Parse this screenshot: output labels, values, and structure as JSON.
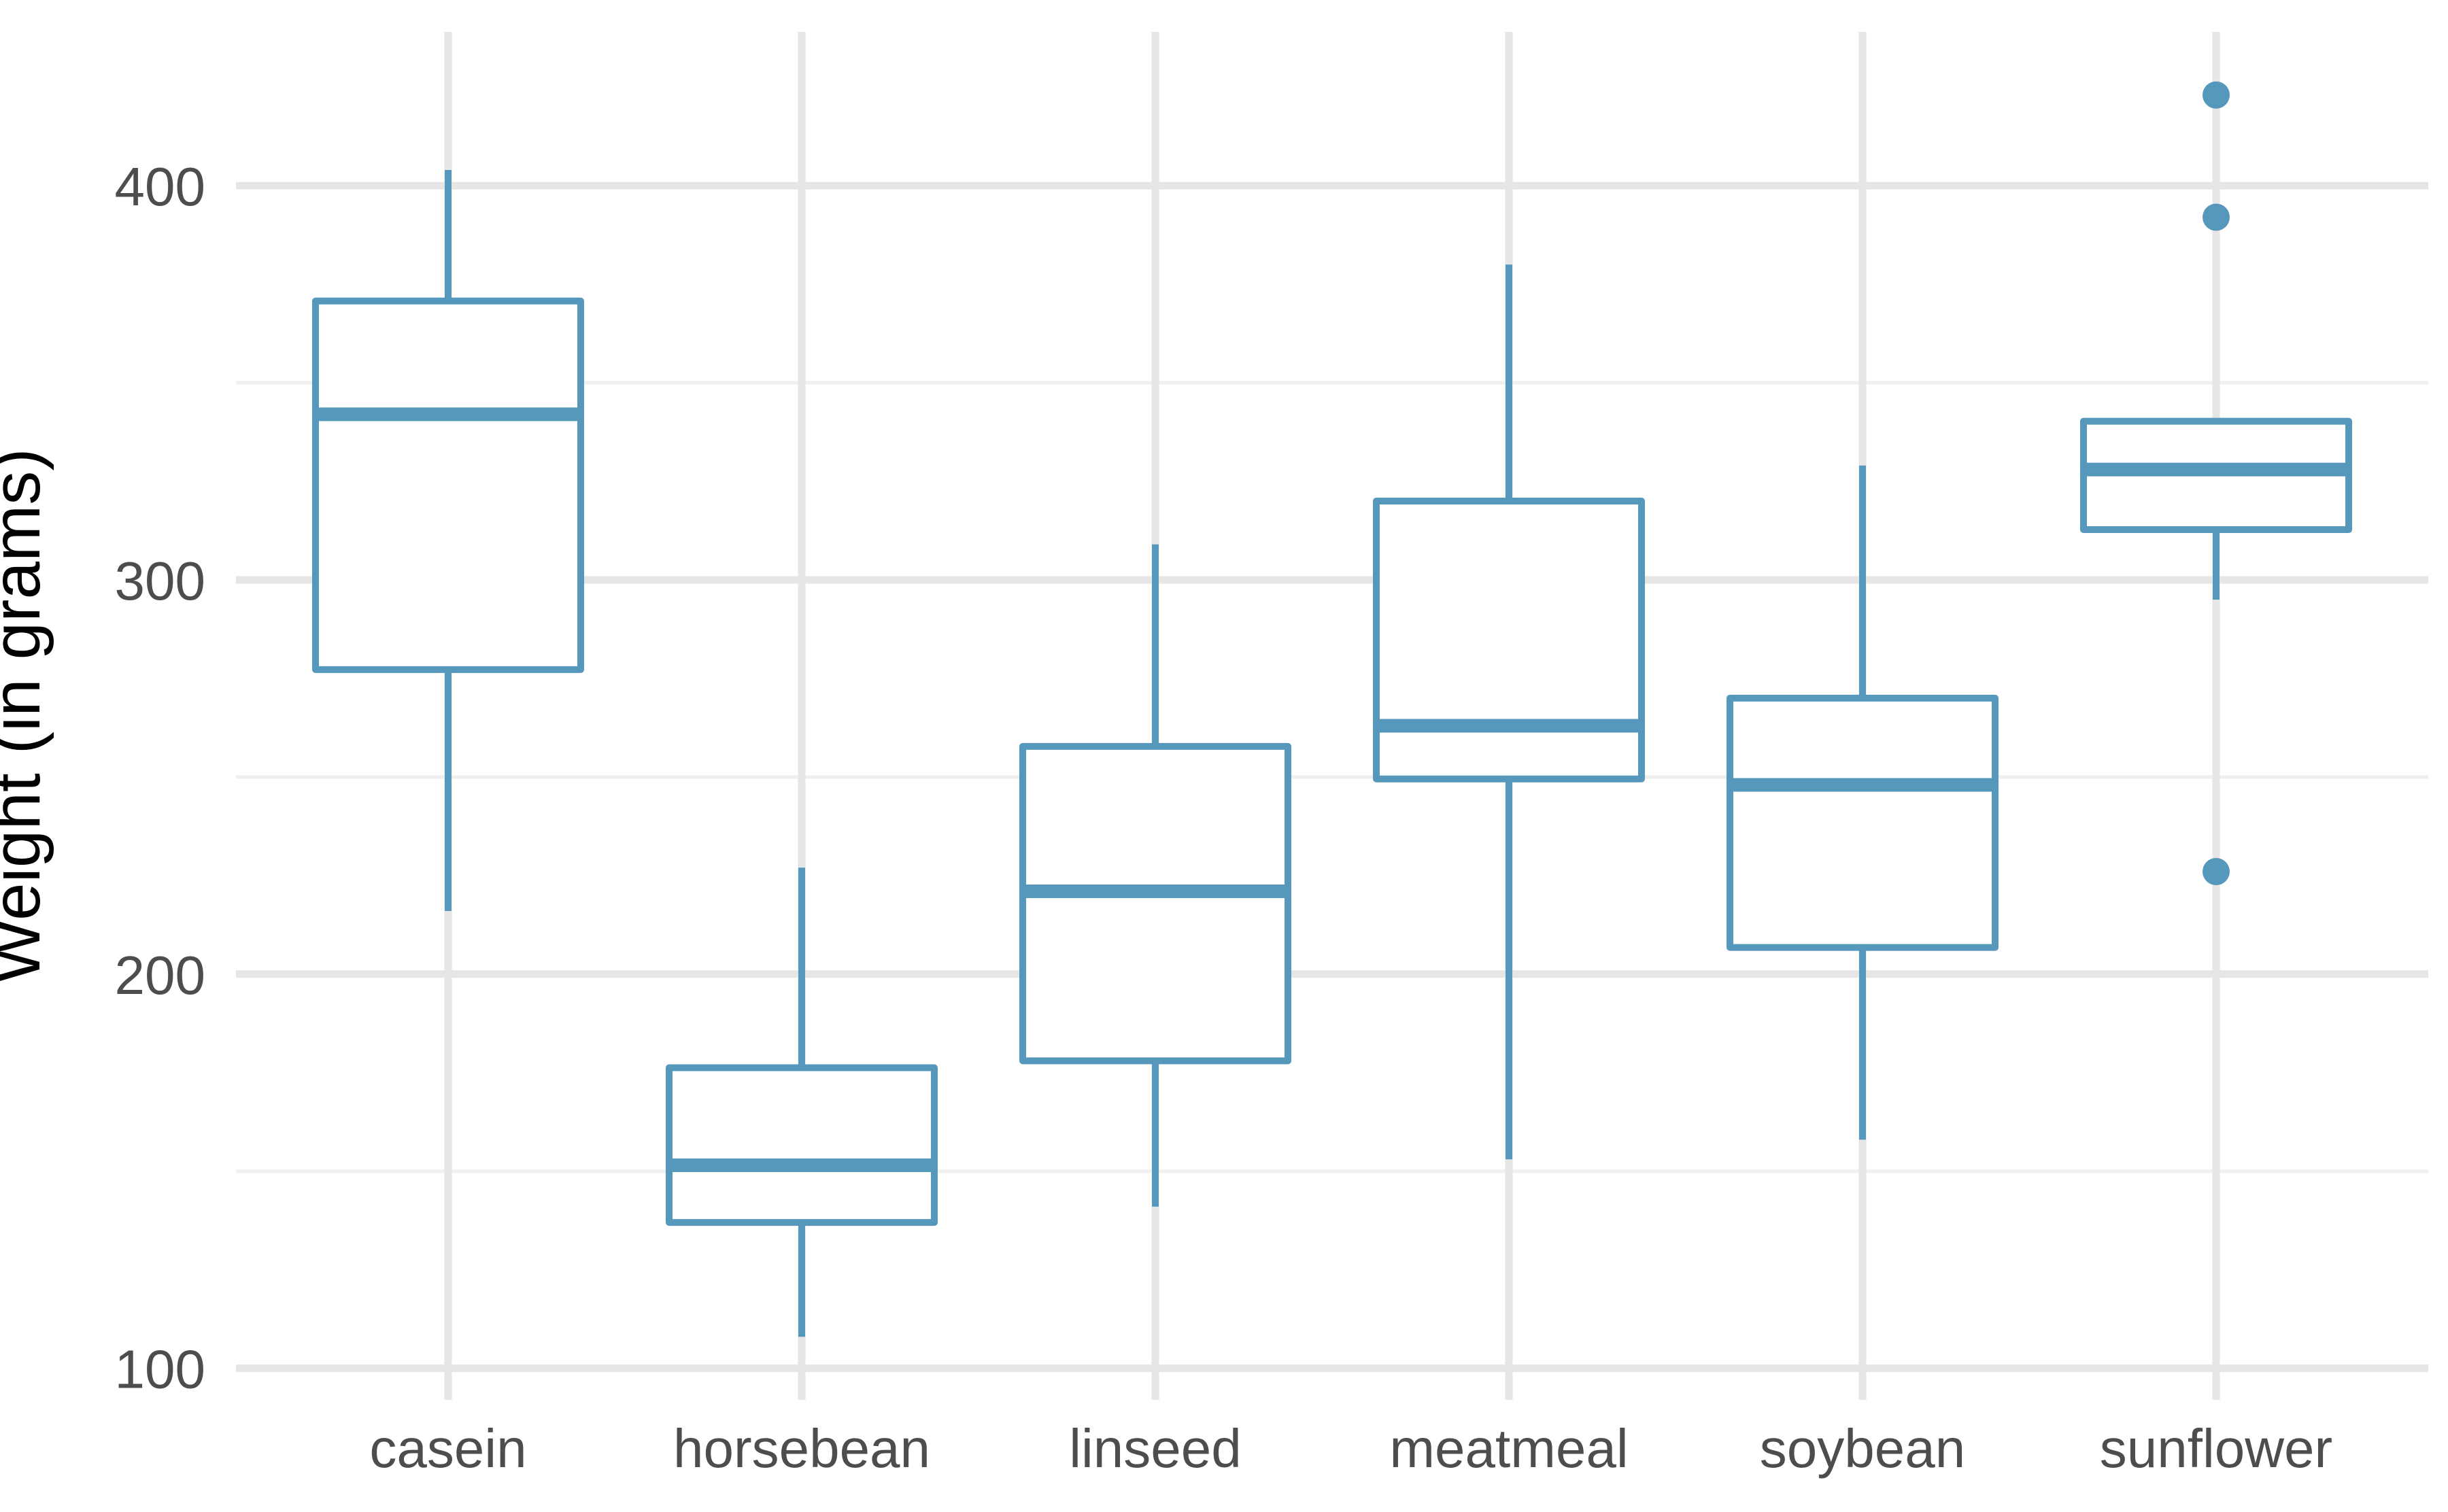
{
  "chart_data": {
    "type": "boxplot",
    "title": "",
    "xlabel": "",
    "ylabel": "Weight (in grams)",
    "categories": [
      "casein",
      "horsebean",
      "linseed",
      "meatmeal",
      "soybean",
      "sunflower"
    ],
    "series": [
      {
        "name": "casein",
        "whisker_low": 216,
        "q1": 277.25,
        "median": 342,
        "q3": 370.75,
        "whisker_high": 404,
        "outliers": []
      },
      {
        "name": "horsebean",
        "whisker_low": 108,
        "q1": 137,
        "median": 151.5,
        "q3": 176.25,
        "whisker_high": 227,
        "outliers": []
      },
      {
        "name": "linseed",
        "whisker_low": 141,
        "q1": 178,
        "median": 221,
        "q3": 257.75,
        "whisker_high": 309,
        "outliers": []
      },
      {
        "name": "meatmeal",
        "whisker_low": 153,
        "q1": 249.5,
        "median": 263,
        "q3": 320,
        "whisker_high": 380,
        "outliers": []
      },
      {
        "name": "soybean",
        "whisker_low": 158,
        "q1": 206.75,
        "median": 248,
        "q3": 270,
        "whisker_high": 329,
        "outliers": []
      },
      {
        "name": "sunflower",
        "whisker_low": 295,
        "q1": 312.75,
        "median": 328,
        "q3": 340.25,
        "whisker_high": 341,
        "outliers": [
          226,
          392,
          423
        ]
      }
    ],
    "yticks": [
      100,
      200,
      300,
      400
    ],
    "yticks_minor": [
      150,
      250,
      350
    ],
    "ylim": [
      92,
      439
    ],
    "grid": "on",
    "legend": "none",
    "colors": {
      "box_stroke": "#5697BC",
      "box_fill": "#FFFFFF",
      "outlier_fill": "#5697BC",
      "grid_major": "#E6E6E6",
      "grid_minor": "#EFEFEF",
      "axis_text": "#4D4D4D",
      "axis_title": "#000000",
      "background": "#FFFFFF"
    }
  }
}
